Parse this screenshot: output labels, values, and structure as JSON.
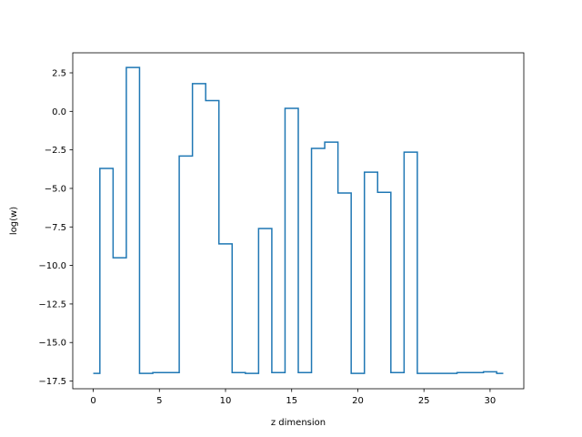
{
  "chart_data": {
    "type": "line",
    "drawstyle": "steps-mid",
    "xlabel": "z dimension",
    "ylabel": "log(w)",
    "xlim": [
      -1.55,
      32.55
    ],
    "ylim": [
      -18.0,
      3.8
    ],
    "grid": false,
    "xticks": [
      0,
      5,
      10,
      15,
      20,
      25,
      30
    ],
    "yticks": [
      2.5,
      0.0,
      -2.5,
      -5.0,
      -7.5,
      -10.0,
      -12.5,
      -15.0,
      -17.5
    ],
    "ytick_labels": [
      "2.5",
      "0.0",
      "−2.5",
      "−5.0",
      "−7.5",
      "−10.0",
      "−12.5",
      "−15.0",
      "−17.5"
    ],
    "series": [
      {
        "color": "#1f77b4",
        "x": [
          0,
          1,
          2,
          3,
          4,
          5,
          6,
          7,
          8,
          9,
          10,
          11,
          12,
          13,
          14,
          15,
          16,
          17,
          18,
          19,
          20,
          21,
          22,
          23,
          24,
          25,
          26,
          27,
          28,
          29,
          30,
          31
        ],
        "y": [
          -17.0,
          -3.7,
          -9.5,
          2.85,
          -17.0,
          -16.95,
          -16.95,
          -2.9,
          1.8,
          0.7,
          -8.6,
          -16.95,
          -17.0,
          -7.6,
          -16.95,
          0.2,
          -16.95,
          -2.4,
          -2.0,
          -5.3,
          -17.0,
          -3.95,
          -5.25,
          -16.95,
          -2.65,
          -17.0,
          -17.0,
          -17.0,
          -16.95,
          -16.95,
          -16.9,
          -17.0
        ]
      }
    ]
  }
}
